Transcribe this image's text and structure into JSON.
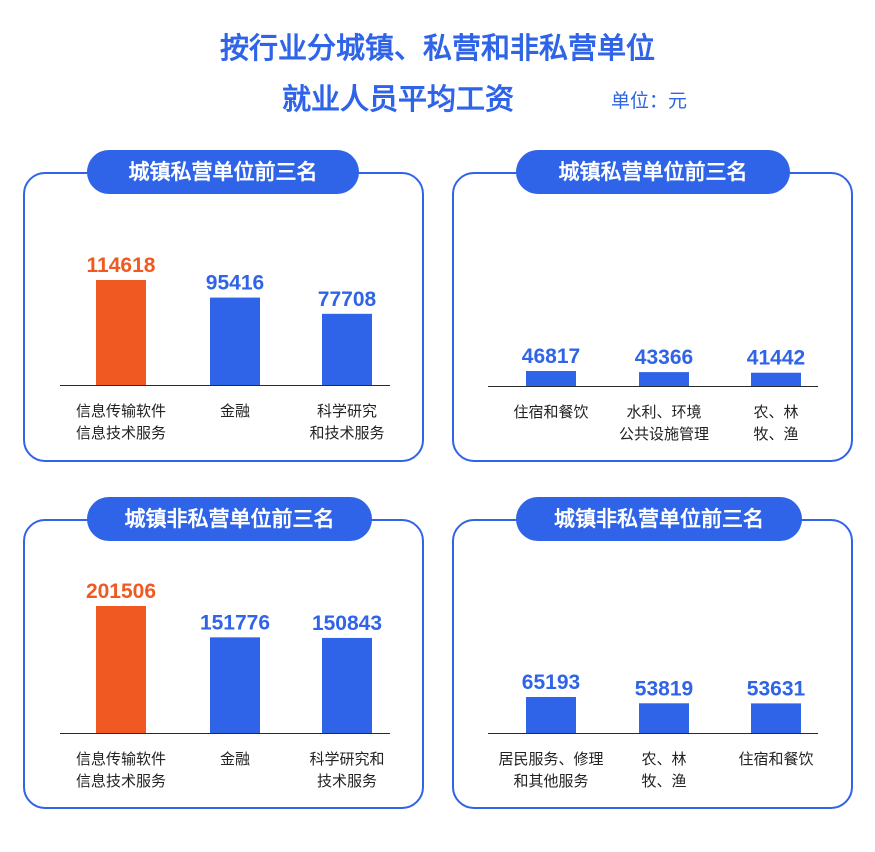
{
  "header": {
    "title_line1": "按行业分城镇、私营和非私营单位",
    "title_line2": "就业人员平均工资",
    "unit": "单位：元"
  },
  "colors": {
    "accent": "#2f64e8",
    "highlight": "#f05a22",
    "text": "#222222"
  },
  "chart_data": [
    {
      "type": "bar",
      "title": "城镇私营单位前三名",
      "categories": [
        [
          "信息传输软件",
          "信息技术服务"
        ],
        [
          "金融"
        ],
        [
          "科学研究",
          "和技术服务"
        ]
      ],
      "values": [
        114618,
        95416,
        77708
      ],
      "highlight_index": 0
    },
    {
      "type": "bar",
      "title": "城镇私营单位前三名",
      "categories": [
        [
          "住宿和餐饮"
        ],
        [
          "水利、环境",
          "公共设施管理"
        ],
        [
          "农、林",
          "牧、渔"
        ]
      ],
      "values": [
        46817,
        43366,
        41442
      ],
      "highlight_index": -1
    },
    {
      "type": "bar",
      "title": "城镇非私营单位前三名",
      "categories": [
        [
          "信息传输软件",
          "信息技术服务"
        ],
        [
          "金融"
        ],
        [
          "科学研究和",
          "技术服务"
        ]
      ],
      "values": [
        201506,
        151776,
        150843
      ],
      "highlight_index": 0
    },
    {
      "type": "bar",
      "title": "城镇非私营单位前三名",
      "categories": [
        [
          "居民服务、修理",
          "和其他服务"
        ],
        [
          "农、林",
          "牧、渔"
        ],
        [
          "住宿和餐饮"
        ]
      ],
      "values": [
        65193,
        53819,
        53631
      ],
      "highlight_index": -1
    }
  ]
}
